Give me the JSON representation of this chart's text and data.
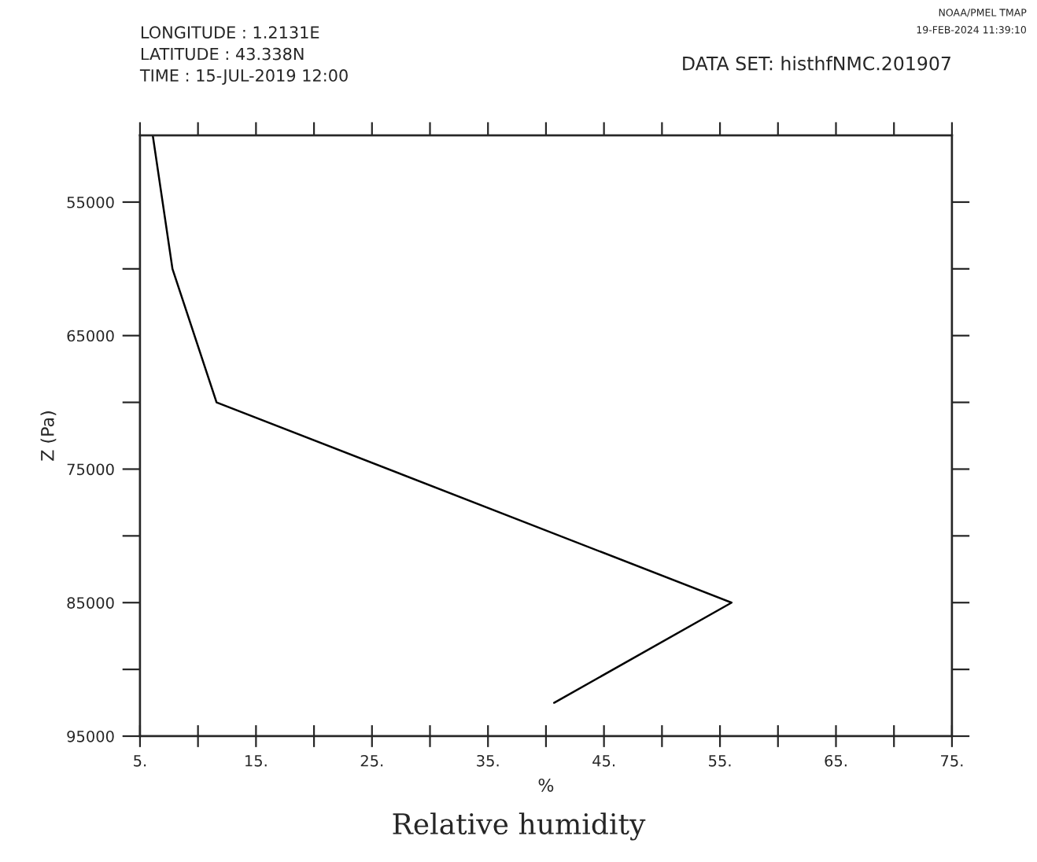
{
  "chart_data": {
    "type": "line",
    "title": "Relative humidity",
    "xlabel": "%",
    "ylabel": "Z (Pa)",
    "annotations": [
      "LONGITUDE : 1.2131E",
      "LATITUDE : 43.338N",
      "TIME : 15-JUL-2019 12:00",
      "DATA SET: histhfNMC.201907",
      "NOAA/PMEL TMAP",
      "19-FEB-2024 11:39:10"
    ],
    "series": [
      {
        "color": "#000000",
        "x": [
          6.1,
          7.8,
          11.6,
          56.0,
          40.7
        ],
        "values": [
          50000,
          60000,
          70000,
          85000,
          92500
        ]
      }
    ],
    "xlim": [
      5,
      75
    ],
    "xticks": [
      {
        "value": 5,
        "label": "5."
      },
      {
        "value": 10,
        "label": null
      },
      {
        "value": 15,
        "label": "15."
      },
      {
        "value": 20,
        "label": null
      },
      {
        "value": 25,
        "label": "25."
      },
      {
        "value": 30,
        "label": null
      },
      {
        "value": 35,
        "label": "35."
      },
      {
        "value": 40,
        "label": null
      },
      {
        "value": 45,
        "label": "45."
      },
      {
        "value": 50,
        "label": null
      },
      {
        "value": 55,
        "label": "55."
      },
      {
        "value": 60,
        "label": null
      },
      {
        "value": 65,
        "label": "65."
      },
      {
        "value": 70,
        "label": null
      },
      {
        "value": 75,
        "label": "75."
      }
    ],
    "ylim": [
      95000,
      50000
    ],
    "yticks": [
      55000,
      {
        "value": 60000,
        "label": null
      },
      65000,
      {
        "value": 70000,
        "label": null
      },
      75000,
      {
        "value": 80000,
        "label": null
      },
      85000,
      {
        "value": 90000,
        "label": null
      },
      95000
    ],
    "grid": false,
    "legend": false,
    "marker": "none",
    "line_style": "solid"
  }
}
